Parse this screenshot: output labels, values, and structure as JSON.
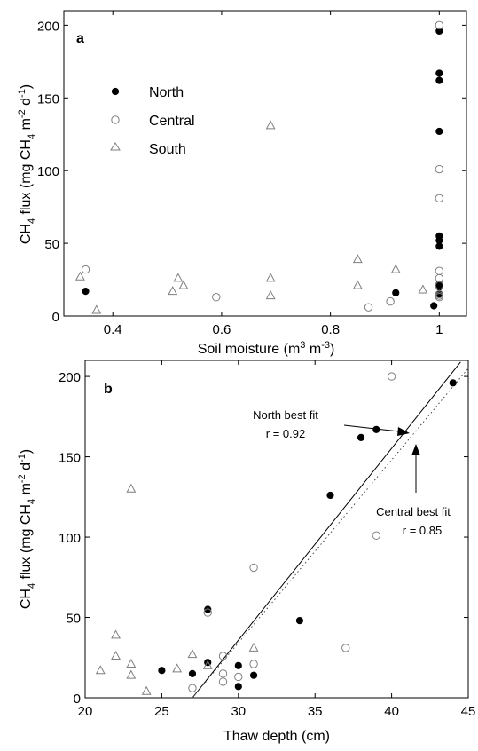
{
  "chart_data": [
    {
      "type": "scatter",
      "panel_label": "a",
      "xlabel": "Soil moisture (m3 m-3)",
      "ylabel": "CH4 flux (mg CH4 m-2 d-1)",
      "xlim": [
        0.31,
        1.05
      ],
      "ylim": [
        0,
        210
      ],
      "x_ticks": [
        0.4,
        0.6,
        0.8,
        1
      ],
      "x_tick_labels": [
        "0.4",
        "0.6",
        "0.8",
        "1"
      ],
      "y_ticks": [
        0,
        50,
        100,
        150,
        200
      ],
      "y_tick_labels": [
        "0",
        "50",
        "100",
        "150",
        "200"
      ],
      "grid": false,
      "legend_position": "upper-left",
      "series": [
        {
          "name": "North",
          "marker": "filled-circle",
          "points": [
            [
              0.35,
              17
            ],
            [
              0.92,
              16
            ],
            [
              0.99,
              7
            ],
            [
              1.0,
              196
            ],
            [
              1.0,
              167
            ],
            [
              1.0,
              162
            ],
            [
              1.0,
              127
            ],
            [
              1.0,
              55
            ],
            [
              1.0,
              52
            ],
            [
              1.0,
              48
            ],
            [
              1.0,
              22
            ],
            [
              1.0,
              20
            ],
            [
              1.0,
              15
            ]
          ]
        },
        {
          "name": "Central",
          "marker": "open-circle",
          "points": [
            [
              0.35,
              32
            ],
            [
              0.59,
              13
            ],
            [
              0.87,
              6
            ],
            [
              0.91,
              10
            ],
            [
              1.0,
              200
            ],
            [
              1.0,
              101
            ],
            [
              1.0,
              81
            ],
            [
              1.0,
              31
            ],
            [
              1.0,
              26
            ],
            [
              1.0,
              21
            ],
            [
              1.0,
              15
            ],
            [
              1.0,
              14
            ],
            [
              1.0,
              13
            ]
          ]
        },
        {
          "name": "South",
          "marker": "open-triangle",
          "points": [
            [
              0.34,
              27
            ],
            [
              0.37,
              4
            ],
            [
              0.51,
              17
            ],
            [
              0.52,
              26
            ],
            [
              0.53,
              21
            ],
            [
              0.69,
              131
            ],
            [
              0.69,
              26
            ],
            [
              0.69,
              14
            ],
            [
              0.85,
              39
            ],
            [
              0.85,
              21
            ],
            [
              0.92,
              32
            ],
            [
              0.97,
              18
            ]
          ]
        }
      ]
    },
    {
      "type": "scatter",
      "panel_label": "b",
      "xlabel": "Thaw depth (cm)",
      "ylabel": "CH4 flux (mg CH4 m-2 d-1)",
      "xlim": [
        20,
        45
      ],
      "ylim": [
        0,
        210
      ],
      "x_ticks": [
        20,
        25,
        30,
        35,
        40,
        45
      ],
      "x_tick_labels": [
        "20",
        "25",
        "30",
        "35",
        "40",
        "45"
      ],
      "y_ticks": [
        0,
        50,
        100,
        150,
        200
      ],
      "y_tick_labels": [
        "0",
        "50",
        "100",
        "150",
        "200"
      ],
      "grid": false,
      "series": [
        {
          "name": "North",
          "marker": "filled-circle",
          "points": [
            [
              25,
              17
            ],
            [
              27,
              15
            ],
            [
              28,
              55
            ],
            [
              28,
              22
            ],
            [
              30,
              20
            ],
            [
              30,
              7
            ],
            [
              31,
              14
            ],
            [
              34,
              48
            ],
            [
              36,
              126
            ],
            [
              38,
              162
            ],
            [
              39,
              167
            ],
            [
              44,
              196
            ]
          ]
        },
        {
          "name": "Central",
          "marker": "open-circle",
          "points": [
            [
              27,
              6
            ],
            [
              28,
              53
            ],
            [
              29,
              26
            ],
            [
              29,
              15
            ],
            [
              29,
              10
            ],
            [
              30,
              13
            ],
            [
              31,
              81
            ],
            [
              31,
              21
            ],
            [
              37,
              31
            ],
            [
              39,
              101
            ],
            [
              40,
              200
            ]
          ]
        },
        {
          "name": "South",
          "marker": "open-triangle",
          "points": [
            [
              21,
              17
            ],
            [
              22,
              39
            ],
            [
              22,
              26
            ],
            [
              23,
              130
            ],
            [
              23,
              21
            ],
            [
              23,
              14
            ],
            [
              24,
              4
            ],
            [
              26,
              18
            ],
            [
              27,
              27
            ],
            [
              28,
              20
            ],
            [
              31,
              31
            ]
          ]
        }
      ],
      "fit_lines": [
        {
          "label": "North best fit",
          "r_text": "r = 0.92",
          "style": "solid",
          "x": [
            27,
            44.5
          ],
          "y": [
            0,
            209
          ]
        },
        {
          "label": "Central best fit",
          "r_text": "r = 0.85",
          "style": "dotted",
          "x": [
            27,
            45
          ],
          "y": [
            0,
            205
          ]
        }
      ]
    }
  ]
}
